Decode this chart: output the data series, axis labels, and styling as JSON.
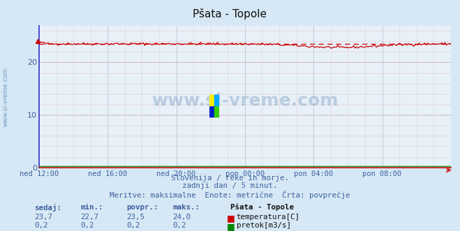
{
  "title": "Pšata - Topole",
  "bg_color": "#d6e8f5",
  "plot_bg_color": "#e8f0f8",
  "grid_color_h": "#c8c8c8",
  "grid_color_v": "#c8c8d8",
  "grid_dot_color": "#e0a0a0",
  "temp_color": "#cc0000",
  "flow_color": "#008800",
  "avg_line_color": "#cc0000",
  "border_left_color": "#4040cc",
  "border_bottom_color": "#cc2222",
  "watermark_color": "#5080b0",
  "tick_color": "#4060a0",
  "info_color": "#4060a0",
  "ylabel_ticks": [
    0,
    10,
    20
  ],
  "ylim": [
    0,
    27
  ],
  "n_points": 289,
  "temp_avg": 23.5,
  "temp_min": 22.7,
  "temp_max": 24.0,
  "temp_current": 23.7,
  "flow_avg": 0.2,
  "flow_min": 0.2,
  "flow_max": 0.2,
  "flow_current": 0.2,
  "xtick_labels": [
    "ned 12:00",
    "ned 16:00",
    "ned 20:00",
    "pon 00:00",
    "pon 04:00",
    "pon 08:00"
  ],
  "xtick_positions": [
    0,
    48,
    96,
    144,
    192,
    240
  ],
  "subtitle1": "Slovenija / reke in morje.",
  "subtitle2": "zadnji dan / 5 minut.",
  "subtitle3": "Meritve: maksimalne  Enote: metrične  Črta: povprečje",
  "label_sedaj": "sedaj:",
  "label_min": "min.:",
  "label_povpr": "povpr.:",
  "label_maks": "maks.:",
  "label_station": "Pšata - Topole",
  "label_temp": "temperatura[C]",
  "label_flow": "pretok[m3/s]",
  "watermark": "www.si-vreme.com",
  "left_label": "www.si-vreme.com"
}
